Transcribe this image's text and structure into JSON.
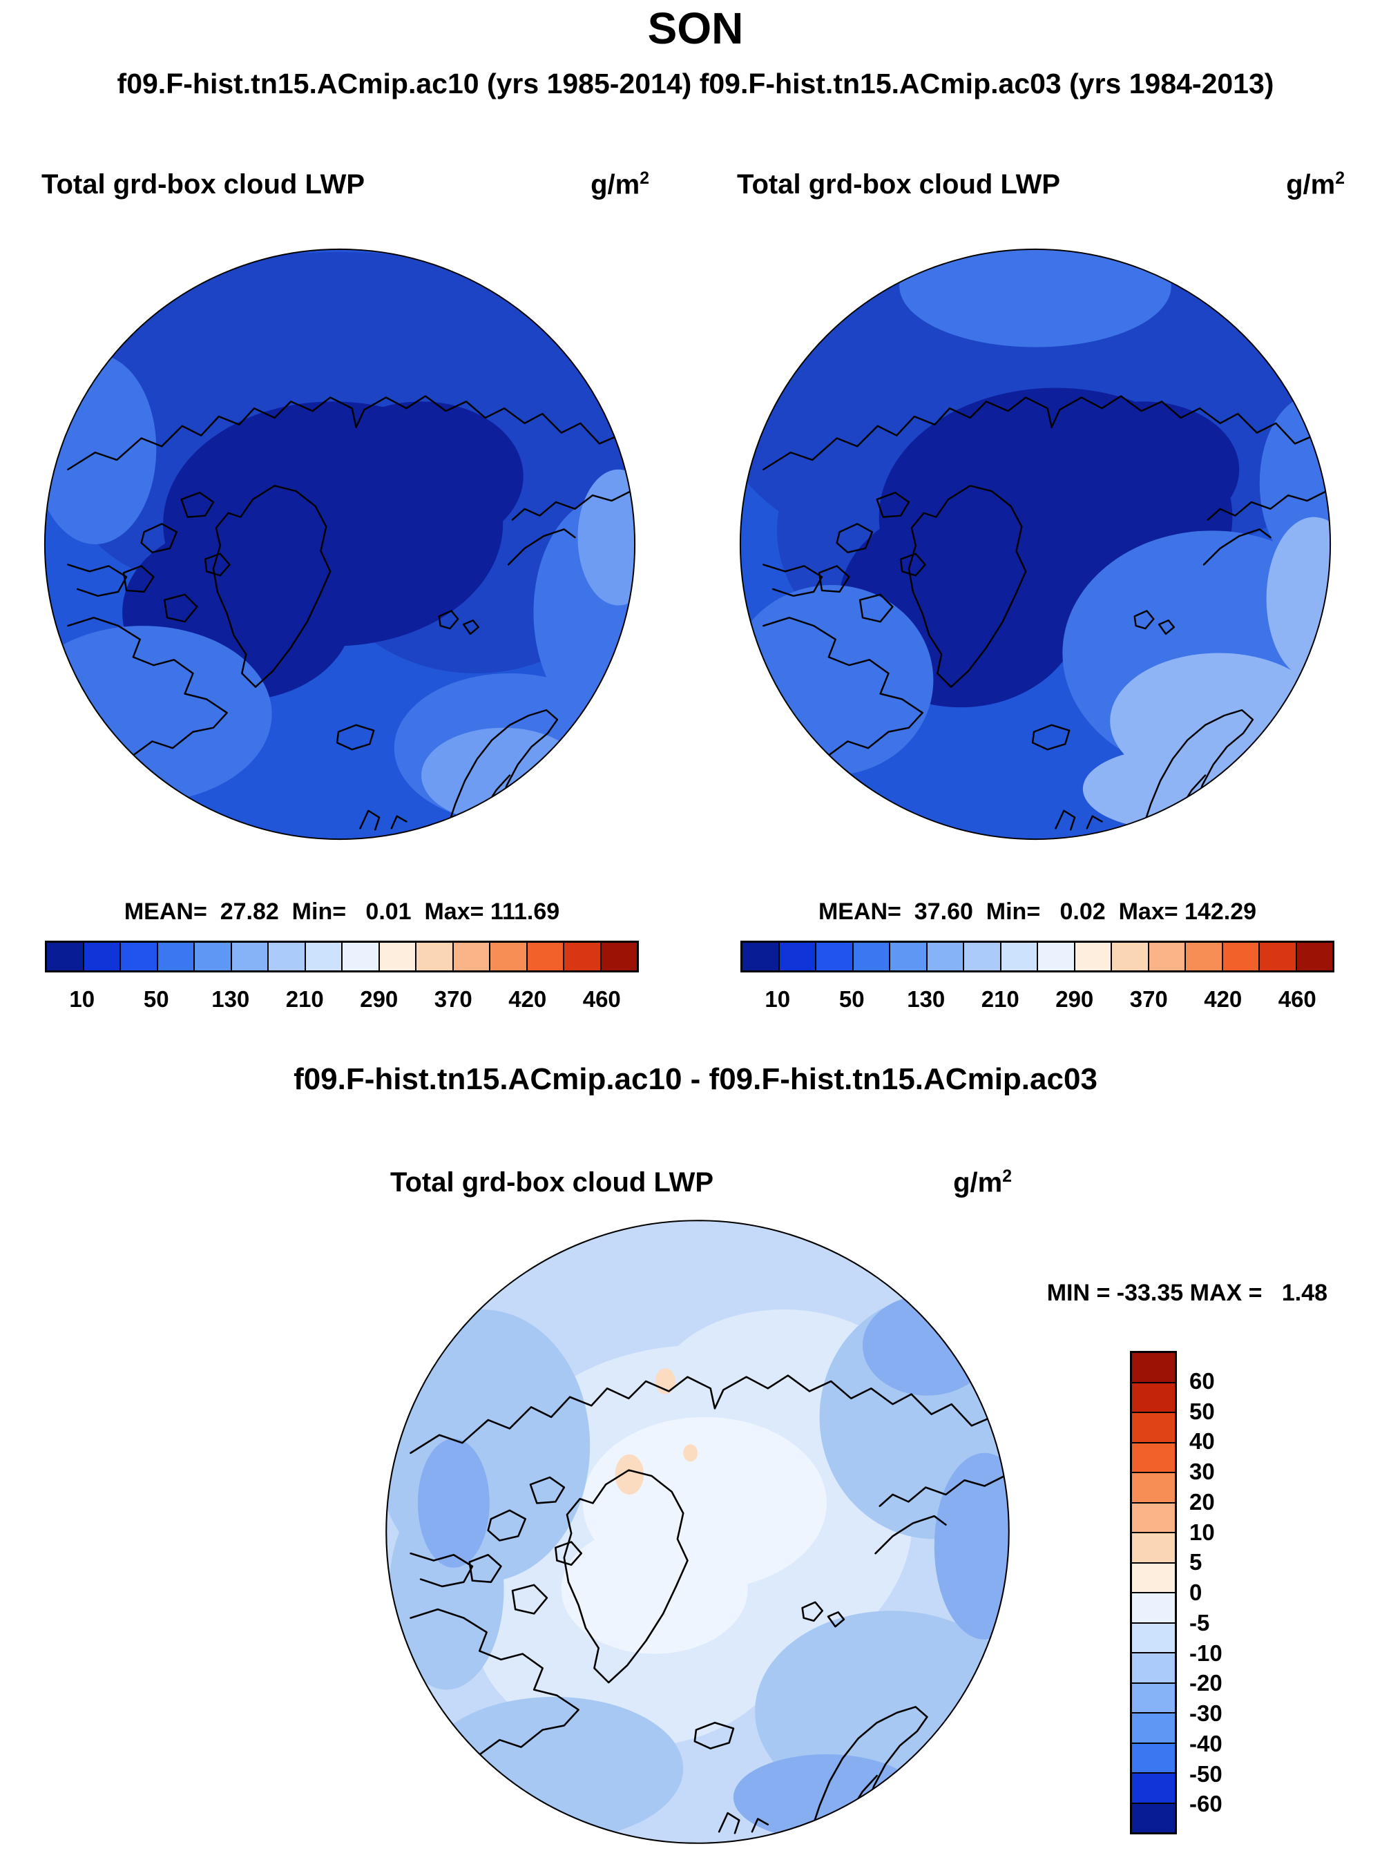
{
  "header": {
    "title": "SON",
    "subtitle": "f09.F-hist.tn15.ACmip.ac10 (yrs 1985-2014) f09.F-hist.tn15.ACmip.ac03 (yrs 1984-2013)"
  },
  "panels": {
    "left": {
      "title": "Total grd-box cloud LWP",
      "units": "g/m",
      "units_exp": "2",
      "stats": "MEAN=  27.82  Min=   0.01  Max= 111.69"
    },
    "right": {
      "title": "Total grd-box cloud LWP",
      "units": "g/m",
      "units_exp": "2",
      "stats": "MEAN=  37.60  Min=   0.02  Max= 142.29"
    }
  },
  "diff": {
    "title": "f09.F-hist.tn15.ACmip.ac10 - f09.F-hist.tn15.ACmip.ac03",
    "panel_title": "Total grd-box cloud LWP",
    "units": "g/m",
    "units_exp": "2",
    "stats": "MIN = -33.35 MAX =   1.48"
  },
  "colorbar_top": {
    "colors": [
      "#081c96",
      "#0f35d8",
      "#2054ec",
      "#3a78f2",
      "#5f97f5",
      "#86b3f8",
      "#abccfa",
      "#cde2fc",
      "#e9f2fd",
      "#fdeede",
      "#fbd6b4",
      "#fab488",
      "#f78e56",
      "#f2612a",
      "#d93613",
      "#9c1306"
    ],
    "tick_labels": [
      "10",
      "50",
      "130",
      "210",
      "290",
      "370",
      "420",
      "460"
    ],
    "tick_positions": [
      0.0625,
      0.1875,
      0.3125,
      0.4375,
      0.5625,
      0.6875,
      0.8125,
      0.9375
    ]
  },
  "colorbar_diff": {
    "colors": [
      "#9c1306",
      "#c42408",
      "#e04414",
      "#f2612a",
      "#f78e56",
      "#fab488",
      "#fbd6b4",
      "#fdeede",
      "#e9f2fd",
      "#cde2fc",
      "#abccfa",
      "#86b3f8",
      "#5f97f5",
      "#3a78f2",
      "#0f35d8",
      "#081c96"
    ],
    "tick_labels": [
      "60",
      "50",
      "40",
      "30",
      "20",
      "10",
      "5",
      "0",
      "-5",
      "-10",
      "-20",
      "-30",
      "-40",
      "-50",
      "-60"
    ]
  },
  "chart_data": [
    {
      "type": "heatmap",
      "subtype": "polar-stereographic-map",
      "dataset": "f09.F-hist.tn15.ACmip.ac10 (yrs 1985-2014)",
      "title": "Total grd-box cloud LWP",
      "units": "g/m^2",
      "season": "SON",
      "stats": {
        "mean": 27.82,
        "min": 0.01,
        "max": 111.69
      },
      "colorbar_ticks": [
        10,
        50,
        130,
        210,
        290,
        370,
        420,
        460
      ],
      "palette": "blue-to-red diverging",
      "legend_position": "bottom"
    },
    {
      "type": "heatmap",
      "subtype": "polar-stereographic-map",
      "dataset": "f09.F-hist.tn15.ACmip.ac03 (yrs 1984-2013)",
      "title": "Total grd-box cloud LWP",
      "units": "g/m^2",
      "season": "SON",
      "stats": {
        "mean": 37.6,
        "min": 0.02,
        "max": 142.29
      },
      "colorbar_ticks": [
        10,
        50,
        130,
        210,
        290,
        370,
        420,
        460
      ],
      "palette": "blue-to-red diverging",
      "legend_position": "bottom"
    },
    {
      "type": "heatmap",
      "subtype": "polar-stereographic-map",
      "dataset": "f09.F-hist.tn15.ACmip.ac10 - f09.F-hist.tn15.ACmip.ac03",
      "title": "Total grd-box cloud LWP",
      "units": "g/m^2",
      "season": "SON",
      "stats": {
        "min": -33.35,
        "max": 1.48
      },
      "colorbar_ticks": [
        60,
        50,
        40,
        30,
        20,
        10,
        5,
        0,
        -5,
        -10,
        -20,
        -30,
        -40,
        -50,
        -60
      ],
      "palette": "blue-to-red diverging",
      "legend_position": "right"
    }
  ]
}
